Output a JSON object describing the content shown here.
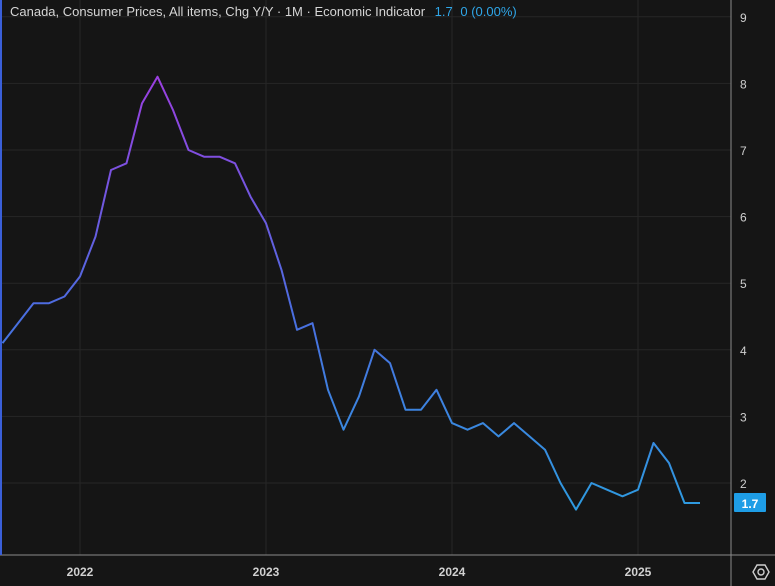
{
  "header": {
    "title": "Canada, Consumer Prices, All items, Chg Y/Y",
    "interval": "1M",
    "type": "Economic Indicator",
    "last_value": "1.7",
    "change": "0 (0.00%)"
  },
  "price_label": "1.7",
  "colors": {
    "background": "#151515",
    "line_low": "#2e9be0",
    "line_high": "#9b3fe0",
    "badge": "#1e9de6"
  },
  "chart_data": {
    "type": "line",
    "title": "Canada, Consumer Prices, All items, Chg Y/Y",
    "start": "2021-08",
    "frequency": "monthly",
    "values": [
      4.1,
      4.4,
      4.7,
      4.7,
      4.8,
      5.1,
      5.7,
      6.7,
      6.8,
      7.7,
      8.1,
      7.6,
      7.0,
      6.9,
      6.9,
      6.8,
      6.3,
      5.9,
      5.2,
      4.3,
      4.4,
      3.4,
      2.8,
      3.3,
      4.0,
      3.8,
      3.1,
      3.1,
      3.4,
      2.9,
      2.8,
      2.9,
      2.7,
      2.9,
      2.7,
      2.5,
      2.0,
      1.6,
      2.0,
      1.9,
      1.8,
      1.9,
      2.6,
      2.3,
      1.7,
      1.7
    ],
    "x_ticks": [
      "2022",
      "2023",
      "2024",
      "2025"
    ],
    "y_ticks": [
      "2",
      "3",
      "4",
      "5",
      "6",
      "7",
      "8",
      "9"
    ],
    "ylim": [
      1.2,
      9.2
    ],
    "grid": true
  }
}
